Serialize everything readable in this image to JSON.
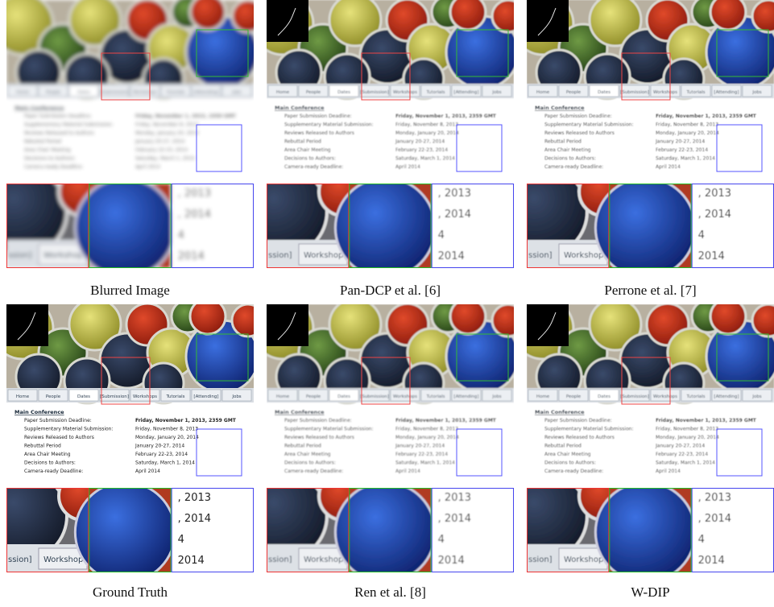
{
  "panels": [
    {
      "caption": "Blurred Image"
    },
    {
      "caption": "Pan-DCP et al. [6]"
    },
    {
      "caption": "Perrone et al. [7]"
    },
    {
      "caption": "Ground Truth"
    },
    {
      "caption": "Ren et al. [8]"
    },
    {
      "caption": "W-DIP"
    }
  ],
  "tabs": [
    "Home",
    "People",
    "Dates",
    "[Submission]",
    "Workshops",
    "Tutorials",
    "[Attending]",
    "Jobs"
  ],
  "schedule": {
    "heading": "Main Conference",
    "rows": [
      [
        "Paper Submission Deadline:",
        "Friday, November 1, 2013, 2359 GMT"
      ],
      [
        "Supplementary Material Submission:",
        "Friday, November 8, 2013"
      ],
      [
        "Reviews Released to Authors",
        "Monday, January 20, 2014"
      ],
      [
        "Rebuttal Period",
        "January 20-27, 2014"
      ],
      [
        "Area Chair Meeting",
        "February 22-23, 2014"
      ],
      [
        "Decisions to Authors:",
        "Saturday, March 1, 2014"
      ],
      [
        "Camera-ready Deadline:",
        "April 2014"
      ]
    ]
  },
  "crop_tabs": [
    "ssion]",
    "Workshops"
  ],
  "crop_text": [
    ", 2013",
    ", 2014",
    "4",
    "2014"
  ]
}
